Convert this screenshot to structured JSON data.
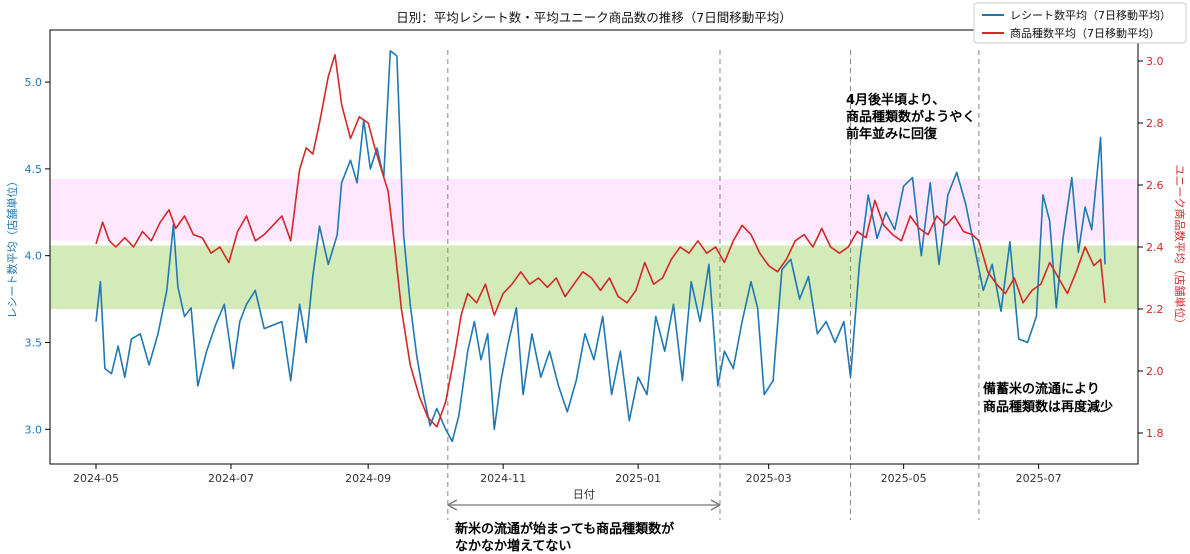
{
  "chart_data": {
    "type": "line",
    "title": "日別：平均レシート数・平均ユニーク商品数の推移（7日間移動平均）",
    "xlabel": "日付",
    "ylabel_left": "レシート数平均（店舗単位）",
    "ylabel_right": "ユニーク商品数平均（店舗単位）",
    "x_ticks": [
      "2024-05",
      "2024-07",
      "2024-09",
      "2024-11",
      "2025-01",
      "2025-03",
      "2025-05",
      "2025-07"
    ],
    "y_left_ticks": [
      "3.0",
      "3.5",
      "4.0",
      "4.5",
      "5.0"
    ],
    "y_right_ticks": [
      "1.8",
      "2.0",
      "2.2",
      "2.4",
      "2.6",
      "2.8",
      "3.0"
    ],
    "ylim_left": [
      2.8,
      5.3
    ],
    "ylim_right": [
      1.7,
      3.1
    ],
    "x_start": "2024-05-01",
    "x_end": "2025-07-31",
    "grid": false,
    "legend_position": "top-right",
    "colors": {
      "series1": "#1f77b4",
      "series2": "#d62728",
      "band_pink": "#ff00ff",
      "band_green": "#5cb800",
      "vline": "#888888"
    },
    "bands": [
      {
        "axis": "right",
        "from": 2.42,
        "to": 2.62,
        "color": "band_pink",
        "opacity": 0.09
      },
      {
        "axis": "right",
        "from": 2.2,
        "to": 2.405,
        "color": "band_green",
        "opacity": 0.28
      }
    ],
    "vlines": [
      "2024-10-07",
      "2025-02-07",
      "2025-04-07",
      "2025-06-04"
    ],
    "span_arrow": {
      "from": "2024-10-07",
      "to": "2025-02-07",
      "label": "日付"
    },
    "series": [
      {
        "name": "レシート数平均（7日移動平均）",
        "axis": "left",
        "color": "series1",
        "points": [
          [
            "2024-05-01",
            3.62
          ],
          [
            "2024-05-03",
            3.85
          ],
          [
            "2024-05-05",
            3.35
          ],
          [
            "2024-05-08",
            3.32
          ],
          [
            "2024-05-11",
            3.48
          ],
          [
            "2024-05-14",
            3.3
          ],
          [
            "2024-05-17",
            3.52
          ],
          [
            "2024-05-21",
            3.55
          ],
          [
            "2024-05-25",
            3.37
          ],
          [
            "2024-05-29",
            3.55
          ],
          [
            "2024-06-02",
            3.8
          ],
          [
            "2024-06-05",
            4.18
          ],
          [
            "2024-06-07",
            3.82
          ],
          [
            "2024-06-10",
            3.65
          ],
          [
            "2024-06-13",
            3.7
          ],
          [
            "2024-06-16",
            3.25
          ],
          [
            "2024-06-20",
            3.45
          ],
          [
            "2024-06-24",
            3.6
          ],
          [
            "2024-06-28",
            3.72
          ],
          [
            "2024-07-02",
            3.35
          ],
          [
            "2024-07-05",
            3.62
          ],
          [
            "2024-07-08",
            3.72
          ],
          [
            "2024-07-12",
            3.8
          ],
          [
            "2024-07-16",
            3.58
          ],
          [
            "2024-07-20",
            3.6
          ],
          [
            "2024-07-24",
            3.62
          ],
          [
            "2024-07-28",
            3.28
          ],
          [
            "2024-08-01",
            3.72
          ],
          [
            "2024-08-04",
            3.5
          ],
          [
            "2024-08-07",
            3.88
          ],
          [
            "2024-08-10",
            4.17
          ],
          [
            "2024-08-14",
            3.95
          ],
          [
            "2024-08-18",
            4.12
          ],
          [
            "2024-08-20",
            4.42
          ],
          [
            "2024-08-24",
            4.55
          ],
          [
            "2024-08-27",
            4.42
          ],
          [
            "2024-08-30",
            4.78
          ],
          [
            "2024-09-02",
            4.5
          ],
          [
            "2024-09-05",
            4.62
          ],
          [
            "2024-09-08",
            4.45
          ],
          [
            "2024-09-11",
            5.18
          ],
          [
            "2024-09-14",
            5.15
          ],
          [
            "2024-09-17",
            4.12
          ],
          [
            "2024-09-20",
            3.72
          ],
          [
            "2024-09-23",
            3.42
          ],
          [
            "2024-09-26",
            3.2
          ],
          [
            "2024-09-29",
            3.02
          ],
          [
            "2024-10-02",
            3.12
          ],
          [
            "2024-10-06",
            3.0
          ],
          [
            "2024-10-09",
            2.93
          ],
          [
            "2024-10-12",
            3.08
          ],
          [
            "2024-10-16",
            3.45
          ],
          [
            "2024-10-19",
            3.62
          ],
          [
            "2024-10-22",
            3.4
          ],
          [
            "2024-10-25",
            3.55
          ],
          [
            "2024-10-28",
            3.0
          ],
          [
            "2024-10-31",
            3.28
          ],
          [
            "2024-11-03",
            3.48
          ],
          [
            "2024-11-07",
            3.7
          ],
          [
            "2024-11-10",
            3.2
          ],
          [
            "2024-11-14",
            3.55
          ],
          [
            "2024-11-18",
            3.3
          ],
          [
            "2024-11-22",
            3.45
          ],
          [
            "2024-11-26",
            3.25
          ],
          [
            "2024-11-30",
            3.1
          ],
          [
            "2024-12-04",
            3.28
          ],
          [
            "2024-12-08",
            3.55
          ],
          [
            "2024-12-12",
            3.4
          ],
          [
            "2024-12-16",
            3.65
          ],
          [
            "2024-12-20",
            3.2
          ],
          [
            "2024-12-24",
            3.45
          ],
          [
            "2024-12-28",
            3.05
          ],
          [
            "2025-01-01",
            3.3
          ],
          [
            "2025-01-05",
            3.2
          ],
          [
            "2025-01-09",
            3.65
          ],
          [
            "2025-01-13",
            3.45
          ],
          [
            "2025-01-17",
            3.72
          ],
          [
            "2025-01-21",
            3.28
          ],
          [
            "2025-01-25",
            3.85
          ],
          [
            "2025-01-29",
            3.62
          ],
          [
            "2025-02-02",
            3.95
          ],
          [
            "2025-02-06",
            3.25
          ],
          [
            "2025-02-09",
            3.45
          ],
          [
            "2025-02-13",
            3.35
          ],
          [
            "2025-02-17",
            3.62
          ],
          [
            "2025-02-21",
            3.85
          ],
          [
            "2025-02-24",
            3.7
          ],
          [
            "2025-02-27",
            3.2
          ],
          [
            "2025-03-03",
            3.28
          ],
          [
            "2025-03-07",
            3.92
          ],
          [
            "2025-03-11",
            3.98
          ],
          [
            "2025-03-15",
            3.75
          ],
          [
            "2025-03-19",
            3.88
          ],
          [
            "2025-03-23",
            3.55
          ],
          [
            "2025-03-27",
            3.62
          ],
          [
            "2025-03-31",
            3.5
          ],
          [
            "2025-04-04",
            3.62
          ],
          [
            "2025-04-07",
            3.3
          ],
          [
            "2025-04-11",
            3.95
          ],
          [
            "2025-04-15",
            4.35
          ],
          [
            "2025-04-19",
            4.1
          ],
          [
            "2025-04-23",
            4.25
          ],
          [
            "2025-04-27",
            4.15
          ],
          [
            "2025-05-01",
            4.4
          ],
          [
            "2025-05-05",
            4.45
          ],
          [
            "2025-05-09",
            4.0
          ],
          [
            "2025-05-13",
            4.42
          ],
          [
            "2025-05-17",
            3.95
          ],
          [
            "2025-05-21",
            4.35
          ],
          [
            "2025-05-25",
            4.48
          ],
          [
            "2025-05-29",
            4.3
          ],
          [
            "2025-06-02",
            4.05
          ],
          [
            "2025-06-06",
            3.8
          ],
          [
            "2025-06-10",
            3.95
          ],
          [
            "2025-06-14",
            3.68
          ],
          [
            "2025-06-18",
            4.08
          ],
          [
            "2025-06-22",
            3.52
          ],
          [
            "2025-06-26",
            3.5
          ],
          [
            "2025-06-30",
            3.65
          ],
          [
            "2025-07-03",
            4.35
          ],
          [
            "2025-07-06",
            4.2
          ],
          [
            "2025-07-09",
            3.7
          ],
          [
            "2025-07-12",
            4.1
          ],
          [
            "2025-07-16",
            4.45
          ],
          [
            "2025-07-19",
            4.02
          ],
          [
            "2025-07-22",
            4.28
          ],
          [
            "2025-07-25",
            4.15
          ],
          [
            "2025-07-29",
            4.68
          ],
          [
            "2025-07-31",
            3.95
          ]
        ]
      },
      {
        "name": "商品種数平均（7日移動平均）",
        "axis": "right",
        "color": "series2",
        "points": [
          [
            "2024-05-01",
            2.41
          ],
          [
            "2024-05-04",
            2.48
          ],
          [
            "2024-05-07",
            2.42
          ],
          [
            "2024-05-10",
            2.4
          ],
          [
            "2024-05-14",
            2.43
          ],
          [
            "2024-05-18",
            2.4
          ],
          [
            "2024-05-22",
            2.45
          ],
          [
            "2024-05-26",
            2.42
          ],
          [
            "2024-05-30",
            2.48
          ],
          [
            "2024-06-03",
            2.52
          ],
          [
            "2024-06-06",
            2.46
          ],
          [
            "2024-06-10",
            2.5
          ],
          [
            "2024-06-14",
            2.44
          ],
          [
            "2024-06-18",
            2.43
          ],
          [
            "2024-06-22",
            2.38
          ],
          [
            "2024-06-26",
            2.4
          ],
          [
            "2024-06-30",
            2.35
          ],
          [
            "2024-07-04",
            2.45
          ],
          [
            "2024-07-08",
            2.5
          ],
          [
            "2024-07-12",
            2.42
          ],
          [
            "2024-07-16",
            2.44
          ],
          [
            "2024-07-20",
            2.47
          ],
          [
            "2024-07-24",
            2.5
          ],
          [
            "2024-07-28",
            2.42
          ],
          [
            "2024-08-01",
            2.65
          ],
          [
            "2024-08-04",
            2.72
          ],
          [
            "2024-08-07",
            2.7
          ],
          [
            "2024-08-10",
            2.8
          ],
          [
            "2024-08-14",
            2.95
          ],
          [
            "2024-08-17",
            3.02
          ],
          [
            "2024-08-20",
            2.86
          ],
          [
            "2024-08-24",
            2.75
          ],
          [
            "2024-08-28",
            2.82
          ],
          [
            "2024-09-01",
            2.8
          ],
          [
            "2024-09-04",
            2.72
          ],
          [
            "2024-09-07",
            2.65
          ],
          [
            "2024-09-10",
            2.58
          ],
          [
            "2024-09-13",
            2.4
          ],
          [
            "2024-09-16",
            2.2
          ],
          [
            "2024-09-20",
            2.02
          ],
          [
            "2024-09-24",
            1.92
          ],
          [
            "2024-09-28",
            1.85
          ],
          [
            "2024-10-02",
            1.82
          ],
          [
            "2024-10-06",
            1.9
          ],
          [
            "2024-10-10",
            2.05
          ],
          [
            "2024-10-13",
            2.18
          ],
          [
            "2024-10-16",
            2.25
          ],
          [
            "2024-10-20",
            2.22
          ],
          [
            "2024-10-24",
            2.28
          ],
          [
            "2024-10-28",
            2.18
          ],
          [
            "2024-11-01",
            2.25
          ],
          [
            "2024-11-05",
            2.28
          ],
          [
            "2024-11-09",
            2.32
          ],
          [
            "2024-11-13",
            2.28
          ],
          [
            "2024-11-17",
            2.3
          ],
          [
            "2024-11-21",
            2.27
          ],
          [
            "2024-11-25",
            2.3
          ],
          [
            "2024-11-29",
            2.24
          ],
          [
            "2024-12-03",
            2.28
          ],
          [
            "2024-12-07",
            2.32
          ],
          [
            "2024-12-11",
            2.3
          ],
          [
            "2024-12-15",
            2.26
          ],
          [
            "2024-12-19",
            2.3
          ],
          [
            "2024-12-23",
            2.24
          ],
          [
            "2024-12-27",
            2.22
          ],
          [
            "2024-12-31",
            2.26
          ],
          [
            "2025-01-04",
            2.35
          ],
          [
            "2025-01-08",
            2.28
          ],
          [
            "2025-01-12",
            2.3
          ],
          [
            "2025-01-16",
            2.36
          ],
          [
            "2025-01-20",
            2.4
          ],
          [
            "2025-01-24",
            2.38
          ],
          [
            "2025-01-28",
            2.42
          ],
          [
            "2025-02-01",
            2.38
          ],
          [
            "2025-02-05",
            2.4
          ],
          [
            "2025-02-09",
            2.35
          ],
          [
            "2025-02-13",
            2.42
          ],
          [
            "2025-02-17",
            2.47
          ],
          [
            "2025-02-21",
            2.44
          ],
          [
            "2025-02-25",
            2.38
          ],
          [
            "2025-03-01",
            2.34
          ],
          [
            "2025-03-05",
            2.32
          ],
          [
            "2025-03-09",
            2.36
          ],
          [
            "2025-03-13",
            2.42
          ],
          [
            "2025-03-17",
            2.44
          ],
          [
            "2025-03-21",
            2.4
          ],
          [
            "2025-03-25",
            2.46
          ],
          [
            "2025-03-29",
            2.4
          ],
          [
            "2025-04-02",
            2.38
          ],
          [
            "2025-04-06",
            2.4
          ],
          [
            "2025-04-10",
            2.45
          ],
          [
            "2025-04-14",
            2.43
          ],
          [
            "2025-04-18",
            2.55
          ],
          [
            "2025-04-22",
            2.47
          ],
          [
            "2025-04-26",
            2.44
          ],
          [
            "2025-04-30",
            2.42
          ],
          [
            "2025-05-04",
            2.5
          ],
          [
            "2025-05-08",
            2.46
          ],
          [
            "2025-05-12",
            2.44
          ],
          [
            "2025-05-16",
            2.5
          ],
          [
            "2025-05-20",
            2.47
          ],
          [
            "2025-05-24",
            2.5
          ],
          [
            "2025-05-28",
            2.45
          ],
          [
            "2025-06-01",
            2.44
          ],
          [
            "2025-06-04",
            2.42
          ],
          [
            "2025-06-08",
            2.32
          ],
          [
            "2025-06-12",
            2.28
          ],
          [
            "2025-06-16",
            2.25
          ],
          [
            "2025-06-20",
            2.3
          ],
          [
            "2025-06-24",
            2.22
          ],
          [
            "2025-06-28",
            2.26
          ],
          [
            "2025-07-02",
            2.28
          ],
          [
            "2025-07-06",
            2.35
          ],
          [
            "2025-07-10",
            2.3
          ],
          [
            "2025-07-14",
            2.25
          ],
          [
            "2025-07-18",
            2.32
          ],
          [
            "2025-07-22",
            2.4
          ],
          [
            "2025-07-26",
            2.34
          ],
          [
            "2025-07-29",
            2.36
          ],
          [
            "2025-07-31",
            2.22
          ]
        ]
      }
    ]
  },
  "annotations": {
    "a1_line1": "4月後半頃より、",
    "a1_line2": "商品種類数がようやく",
    "a1_line3": "前年並みに回復",
    "a2_line1": "備蓄米の流通により",
    "a2_line2": "商品種類数は再度減少",
    "a3_line1": "新米の流通が始まっても商品種類数が",
    "a3_line2": "なかなか増えてない"
  }
}
